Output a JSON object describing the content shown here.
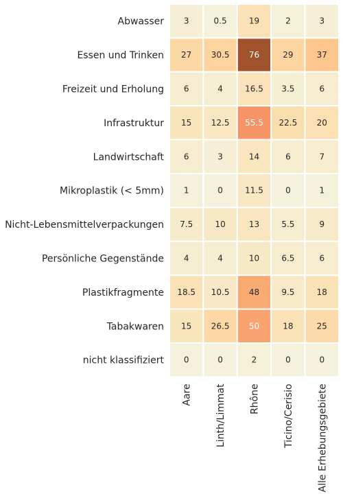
{
  "chart_data": {
    "type": "heatmap",
    "title": "",
    "xlabel": "",
    "ylabel": "",
    "columns": [
      "Aare",
      "Linth/Limmat",
      "Rhône",
      "Ticino/Cerisio",
      "Alle Erhebungsgebiete"
    ],
    "rows": [
      "Abwasser",
      "Essen und Trinken",
      "Freizeit und Erholung",
      "Infrastruktur",
      "Landwirtschaft",
      "Mikroplastik (< 5mm)",
      "Nicht-Lebensmittelverpackungen",
      "Persönliche Gegenstände",
      "Plastikfragmente",
      "Tabakwaren",
      "nicht klassifiziert"
    ],
    "values": [
      [
        3,
        0.5,
        19,
        2,
        3
      ],
      [
        27,
        30.5,
        76,
        29,
        37
      ],
      [
        6,
        4,
        16.5,
        3.5,
        6
      ],
      [
        15,
        12.5,
        55.5,
        22.5,
        20
      ],
      [
        6,
        3,
        14,
        6,
        7
      ],
      [
        1,
        0,
        11.5,
        0,
        1
      ],
      [
        7.5,
        10,
        13,
        5.5,
        9
      ],
      [
        4,
        4,
        10,
        6.5,
        6
      ],
      [
        18.5,
        10.5,
        48,
        9.5,
        18
      ],
      [
        15,
        26.5,
        50,
        18,
        25
      ],
      [
        0,
        0,
        2,
        0,
        0
      ]
    ],
    "colormap": "YlOrBr-like",
    "color_stops": [
      "#f4f2dc",
      "#f8e8c4",
      "#fbdfb0",
      "#fdd09a",
      "#fbb87a",
      "#f7966a",
      "#ee8454",
      "#a0522d"
    ],
    "value_range": [
      0,
      76
    ],
    "grid_color": "#ffffff",
    "colorbar": false
  }
}
